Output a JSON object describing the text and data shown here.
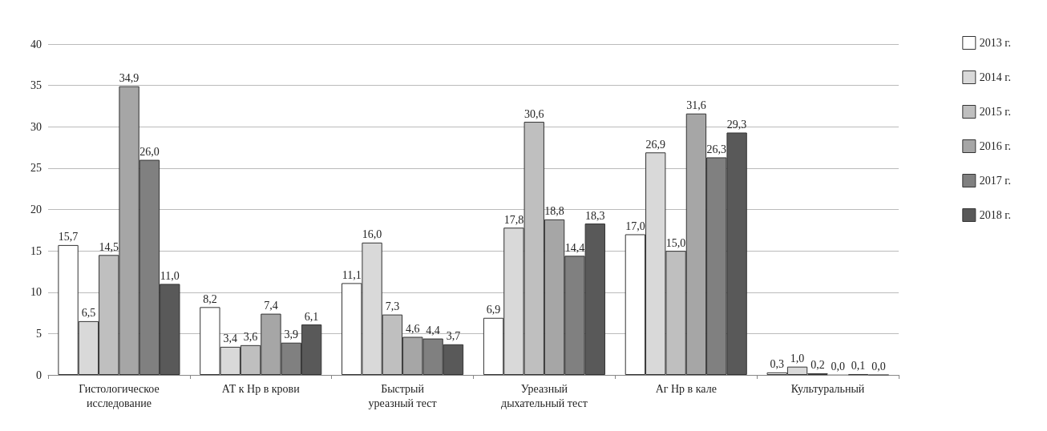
{
  "chart_data": {
    "type": "bar",
    "categories": [
      "Гистологическое\nисследование",
      "АТ к Hp в крови",
      "Быстрый\nуреазный тест",
      "Уреазный\nдыхательный тест",
      "Аг Hp в кале",
      "Культуральный"
    ],
    "series": [
      {
        "name": "2013 г.",
        "color": "#ffffff",
        "values": [
          15.7,
          8.2,
          11.1,
          6.9,
          17.0,
          0.3
        ],
        "value_labels": [
          "15,7",
          "8,2",
          "11,1",
          "6,9",
          "17,0",
          "0,3"
        ]
      },
      {
        "name": "2014 г.",
        "color": "#d9d9d9",
        "values": [
          6.5,
          3.4,
          16.0,
          17.8,
          26.9,
          1.0
        ],
        "value_labels": [
          "6,5",
          "3,4",
          "16,0",
          "17,8",
          "26,9",
          "1,0"
        ]
      },
      {
        "name": "2015 г.",
        "color": "#bfbfbf",
        "values": [
          14.5,
          3.6,
          7.3,
          30.6,
          15.0,
          0.2
        ],
        "value_labels": [
          "14,5",
          "3,6",
          "7,3",
          "30,6",
          "15,0",
          "0,2"
        ]
      },
      {
        "name": "2016 г.",
        "color": "#a6a6a6",
        "values": [
          34.9,
          7.4,
          4.6,
          18.8,
          31.6,
          0.0
        ],
        "value_labels": [
          "34,9",
          "7,4",
          "4,6",
          "18,8",
          "31,6",
          "0,0"
        ]
      },
      {
        "name": "2017 г.",
        "color": "#808080",
        "values": [
          26.0,
          3.9,
          4.4,
          14.4,
          26.3,
          0.1
        ],
        "value_labels": [
          "26,0",
          "3,9",
          "4,4",
          "14,4",
          "26,3",
          "0,1"
        ]
      },
      {
        "name": "2018 г.",
        "color": "#595959",
        "values": [
          11.0,
          6.1,
          3.7,
          18.3,
          29.3,
          0.0
        ],
        "value_labels": [
          "11,0",
          "6,1",
          "3,7",
          "18,3",
          "29,3",
          "0,0"
        ]
      }
    ],
    "ylim": [
      0,
      40
    ],
    "yticks": [
      0,
      5,
      10,
      15,
      20,
      25,
      30,
      35,
      40
    ],
    "grid": "y",
    "legend": "right"
  }
}
